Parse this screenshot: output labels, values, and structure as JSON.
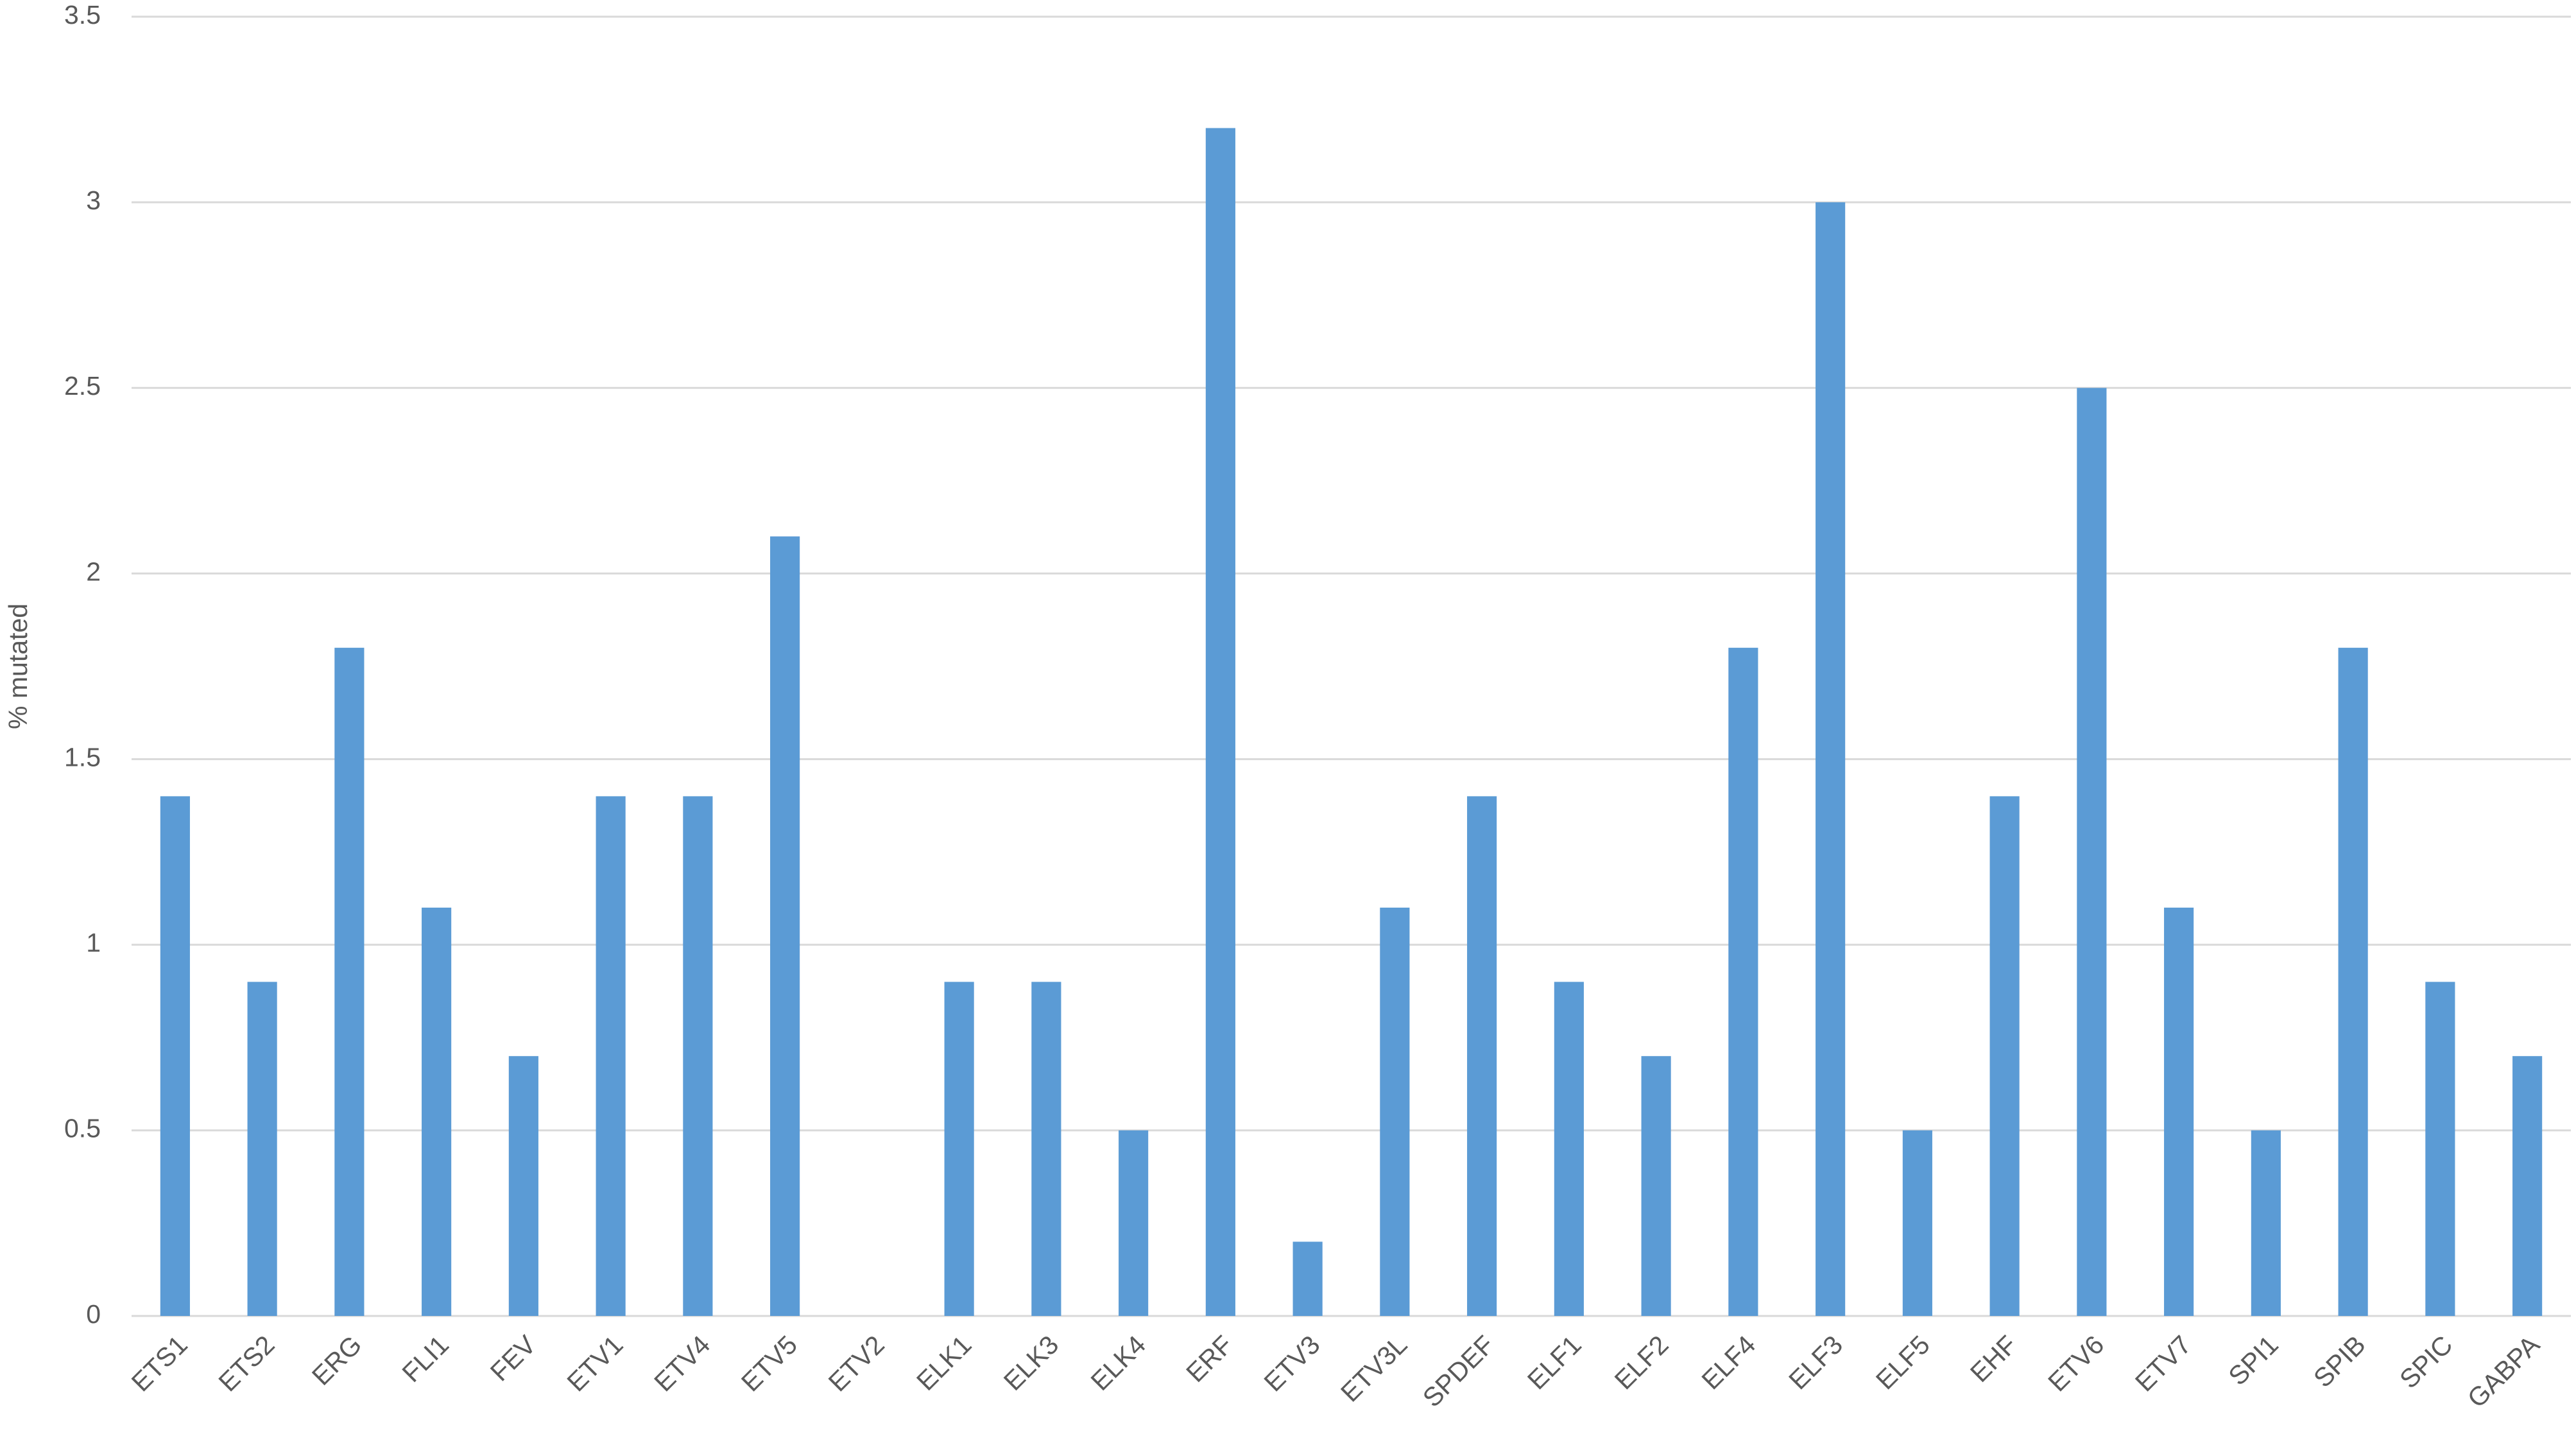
{
  "chart_data": {
    "type": "bar",
    "y_label": "% mutated",
    "categories": [
      "ETS1",
      "ETS2",
      "ERG",
      "FLI1",
      "FEV",
      "ETV1",
      "ETV4",
      "ETV5",
      "ETV2",
      "ELK1",
      "ELK3",
      "ELK4",
      "ERF",
      "ETV3",
      "ETV3L",
      "SPDEF",
      "ELF1",
      "ELF2",
      "ELF4",
      "ELF3",
      "ELF5",
      "EHF",
      "ETV6",
      "ETV7",
      "SPI1",
      "SPIB",
      "SPIC",
      "GABPA"
    ],
    "values": [
      1.4,
      0.9,
      1.8,
      1.1,
      0.7,
      1.4,
      1.4,
      2.1,
      0,
      0.9,
      0.9,
      0.5,
      3.2,
      0.2,
      1.1,
      1.4,
      0.9,
      0.7,
      1.8,
      3.0,
      0.5,
      1.4,
      2.5,
      1.1,
      0.5,
      1.8,
      0.9,
      0.7
    ],
    "color": "#5b9bd5",
    "ylim": [
      0,
      3.5
    ],
    "yticks": [
      0,
      0.5,
      1,
      1.5,
      2,
      2.5,
      3,
      3.5
    ],
    "grid": true
  }
}
